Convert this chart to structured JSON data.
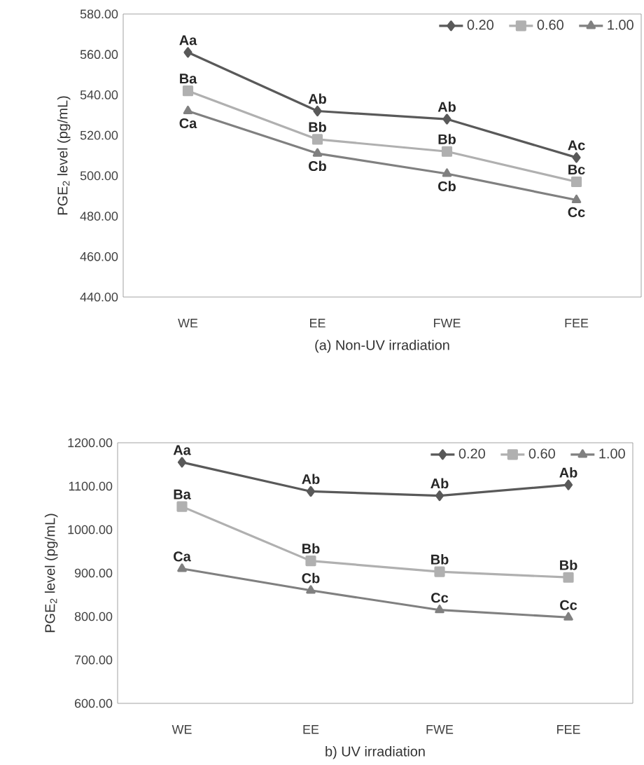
{
  "chart_data": [
    {
      "type": "line",
      "xlabel": "(a) Non-UV irradiation",
      "ylabel": "PGE$_{2}$ level (pg/mL)",
      "categories": [
        "WE",
        "EE",
        "FWE",
        "FEE"
      ],
      "series": [
        {
          "name": "0.20",
          "color": "#595959",
          "marker": "diamond",
          "values": [
            561,
            532,
            528,
            509
          ]
        },
        {
          "name": "0.60",
          "color": "#b0b0b0",
          "marker": "square",
          "values": [
            542,
            518,
            512,
            497
          ]
        },
        {
          "name": "1.00",
          "color": "#808080",
          "marker": "triangle",
          "values": [
            532,
            511,
            501,
            488
          ]
        }
      ],
      "ylim": [
        440,
        580
      ],
      "yticks": [
        {
          "value": 440,
          "label": "440.00"
        },
        {
          "value": 460,
          "label": "460.00"
        },
        {
          "value": 480,
          "label": "480.00"
        },
        {
          "value": 500,
          "label": "500.00"
        },
        {
          "value": 520,
          "label": "520.00"
        },
        {
          "value": 540,
          "label": "540.00"
        },
        {
          "value": 560,
          "label": "560.00"
        },
        {
          "value": 580,
          "label": "580.00"
        }
      ],
      "legend": "top right",
      "grid": false,
      "annotations": [
        {
          "text": "Aa",
          "x": "WE",
          "y": 561
        },
        {
          "text": "Ab",
          "x": "EE",
          "y": 532
        },
        {
          "text": "Ab",
          "x": "FWE",
          "y": 528
        },
        {
          "text": "Ac",
          "x": "FEE",
          "y": 509
        },
        {
          "text": "Ba",
          "x": "WE",
          "y": 542
        },
        {
          "text": "Bb",
          "x": "EE",
          "y": 518
        },
        {
          "text": "Bb",
          "x": "FWE",
          "y": 512
        },
        {
          "text": "Bc",
          "x": "FEE",
          "y": 497
        },
        {
          "text": "Ca",
          "x": "WE",
          "y": 532
        },
        {
          "text": "Cb",
          "x": "EE",
          "y": 511
        },
        {
          "text": "Cb",
          "x": "FWE",
          "y": 501
        },
        {
          "text": "Cc",
          "x": "FEE",
          "y": 488
        }
      ]
    },
    {
      "type": "line",
      "xlabel": "b) UV irradiation",
      "ylabel": "PGE$_{2}$ level (pg/mL)",
      "categories": [
        "WE",
        "EE",
        "FWE",
        "FEE"
      ],
      "series": [
        {
          "name": "0.20",
          "color": "#595959",
          "marker": "diamond",
          "values": [
            1155,
            1088,
            1078,
            1103
          ]
        },
        {
          "name": "0.60",
          "color": "#b0b0b0",
          "marker": "square",
          "values": [
            1053,
            928,
            903,
            890
          ]
        },
        {
          "name": "1.00",
          "color": "#808080",
          "marker": "triangle",
          "values": [
            910,
            860,
            815,
            798
          ]
        }
      ],
      "ylim": [
        600,
        1200
      ],
      "yticks": [
        {
          "value": 600,
          "label": "600.00"
        },
        {
          "value": 700,
          "label": "700.00"
        },
        {
          "value": 800,
          "label": "800.00"
        },
        {
          "value": 900,
          "label": "900.00"
        },
        {
          "value": 1000,
          "label": "1000.00"
        },
        {
          "value": 1100,
          "label": "1100.00"
        },
        {
          "value": 1200,
          "label": "1200.00"
        }
      ],
      "legend": "top right",
      "grid": false,
      "annotations": [
        {
          "text": "Aa",
          "x": "WE",
          "y": 1155
        },
        {
          "text": "Ab",
          "x": "EE",
          "y": 1088
        },
        {
          "text": "Ab",
          "x": "FWE",
          "y": 1078
        },
        {
          "text": "Ab",
          "x": "FEE",
          "y": 1103
        },
        {
          "text": "Ba",
          "x": "WE",
          "y": 1053
        },
        {
          "text": "Bb",
          "x": "EE",
          "y": 928
        },
        {
          "text": "Bb",
          "x": "FWE",
          "y": 903
        },
        {
          "text": "Bb",
          "x": "FEE",
          "y": 890
        },
        {
          "text": "Ca",
          "x": "WE",
          "y": 910
        },
        {
          "text": "Cb",
          "x": "EE",
          "y": 860
        },
        {
          "text": "Cc",
          "x": "FWE",
          "y": 815
        },
        {
          "text": "Cc",
          "x": "FEE",
          "y": 798
        }
      ]
    }
  ]
}
